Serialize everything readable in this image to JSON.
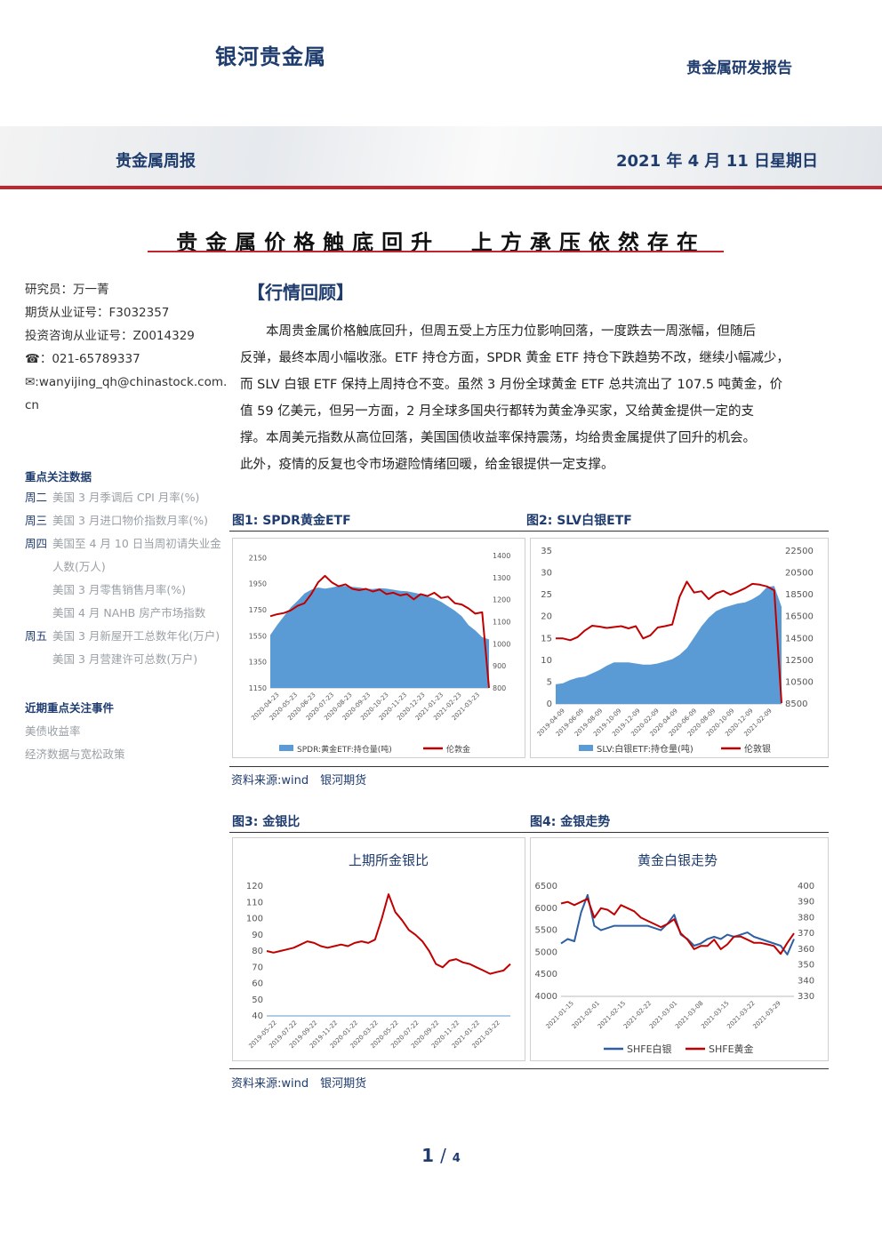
{
  "header": {
    "brand": "银河贵金属",
    "report_type": "贵金属研发报告",
    "weekly": "贵金属周报",
    "date": "2021 年 4 月 11 日星期日"
  },
  "title": "贵金属价格触底回升  上方承压依然存在",
  "sidebar": {
    "analyst": "研究员：万一菁",
    "futures_license": "期货从业证号：F3032357",
    "advisory_license": "投资咨询从业证号：Z0014329",
    "phone": "☎：021-65789337",
    "email": "✉:wanyijing_qh@chinastock.com.",
    "email_cont": "cn",
    "focus_title": "重点关注数据",
    "focus_items": [
      {
        "day": "周二",
        "text": "美国 3 月季调后 CPI 月率(%)"
      },
      {
        "day": "周三",
        "text": "美国 3 月进口物价指数月率(%)"
      },
      {
        "day": "周四",
        "text": "美国至 4 月 10 日当周初请失业金"
      },
      {
        "day": "",
        "text": "人数(万人)"
      },
      {
        "day": "",
        "text": "美国 3 月零售销售月率(%)"
      },
      {
        "day": "",
        "text": "美国 4 月 NAHB 房产市场指数"
      },
      {
        "day": "周五",
        "text": "美国 3 月新屋开工总数年化(万户)"
      },
      {
        "day": "",
        "text": "美国 3 月营建许可总数(万户)"
      }
    ],
    "events_title": "近期重点关注事件",
    "events": [
      "美债收益率",
      "经济数据与宽松政策"
    ]
  },
  "section_title": "【行情回顾】",
  "paragraph_lines": [
    "　　本周贵金属价格触底回升，但周五受上方压力位影响回落，一度跌去一周涨幅，但随后",
    "反弹，最终本周小幅收涨。ETF 持仓方面，SPDR 黄金 ETF 持仓下跌趋势不改，继续小幅减少，",
    "而 SLV 白银 ETF 保持上周持仓不变。虽然 3 月份全球黄金 ETF 总共流出了 107.5 吨黄金，价",
    "值 59 亿美元，但另一方面，2 月全球多国央行都转为黄金净买家，又给黄金提供一定的支",
    "撑。本周美元指数从高位回落，美国国债收益率保持震荡，均给贵金属提供了回升的机会。",
    "此外，疫情的反复也令市场避险情绪回暖，给金银提供一定支撑。"
  ],
  "figures": {
    "fig1_label": "图1: SPDR黄金ETF",
    "fig2_label": "图2:  SLV白银ETF",
    "fig3_label": "图3:  金银比",
    "fig4_label": "图4:  金银走势",
    "source1": "资料来源:wind　银河期货",
    "source2": "资料来源:wind　银河期货"
  },
  "page": {
    "current": "1",
    "sep": "/",
    "total": "4"
  },
  "colors": {
    "navy": "#1f3c6e",
    "red": "#c00000",
    "etf_blue": "#5b9bd5",
    "silver_line": "#2e5fa3"
  },
  "chart_data": [
    {
      "type": "area",
      "id": "spdr",
      "x_ticks": [
        "2020-04-23",
        "2020-05-23",
        "2020-06-23",
        "2020-07-23",
        "2020-08-23",
        "2020-09-23",
        "2020-10-23",
        "2020-11-23",
        "2020-12-23",
        "2021-01-23",
        "2021-02-23",
        "2021-03-23"
      ],
      "y_left_ticks": [
        "2150",
        "1950",
        "1750",
        "1550",
        "1350",
        "1150"
      ],
      "y_right_ticks": [
        "1400",
        "1300",
        "1200",
        "1100",
        "1000",
        "900",
        "800"
      ],
      "ylim_left": [
        1150,
        2200
      ],
      "ylim_right": [
        800,
        1420
      ],
      "series": [
        {
          "name": "SPDR:黄金ETF:持仓量(吨)",
          "axis": "right",
          "values": [
            1040,
            1085,
            1125,
            1165,
            1195,
            1228,
            1245,
            1255,
            1250,
            1255,
            1262,
            1262,
            1258,
            1255,
            1250,
            1248,
            1252,
            1250,
            1245,
            1240,
            1238,
            1232,
            1225,
            1215,
            1205,
            1190,
            1170,
            1150,
            1125,
            1085,
            1060,
            1030,
            1020
          ]
        },
        {
          "name": "伦敦金",
          "axis": "left",
          "values": [
            1700,
            1715,
            1725,
            1745,
            1780,
            1800,
            1870,
            1960,
            2010,
            1960,
            1930,
            1945,
            1910,
            1900,
            1910,
            1890,
            1905,
            1870,
            1880,
            1860,
            1870,
            1830,
            1870,
            1855,
            1880,
            1840,
            1850,
            1800,
            1790,
            1760,
            1720,
            1730,
            1150
          ]
        }
      ],
      "legend": "bottom"
    },
    {
      "type": "area",
      "id": "slv",
      "x_ticks": [
        "2019-04-09",
        "2019-06-09",
        "2019-08-09",
        "2019-10-09",
        "2019-12-09",
        "2020-02-09",
        "2020-04-09",
        "2020-06-09",
        "2020-08-09",
        "2020-10-09",
        "2020-12-09",
        "2021-02-09"
      ],
      "y_left_ticks": [
        "35",
        "30",
        "25",
        "20",
        "15",
        "10",
        "5",
        "0"
      ],
      "y_right_ticks": [
        "22500",
        "20500",
        "18500",
        "16500",
        "14500",
        "12500",
        "10500",
        "8500"
      ],
      "ylim_left": [
        0,
        35
      ],
      "ylim_right": [
        8500,
        22500
      ],
      "series": [
        {
          "name": "SLV:白银ETF:持仓量(吨)",
          "axis": "right",
          "values": [
            10300,
            10400,
            10700,
            10900,
            11000,
            11300,
            11600,
            12000,
            12300,
            12300,
            12300,
            12200,
            12100,
            12100,
            12200,
            12400,
            12600,
            13000,
            13600,
            14600,
            15600,
            16400,
            17000,
            17300,
            17500,
            17700,
            17800,
            18100,
            18500,
            19200,
            19300,
            17400
          ]
        },
        {
          "name": "伦敦银",
          "axis": "left",
          "values": [
            15.0,
            15.0,
            14.6,
            15.3,
            16.8,
            17.9,
            17.7,
            17.4,
            17.6,
            17.8,
            17.3,
            17.8,
            15.0,
            15.7,
            17.5,
            17.8,
            18.2,
            24.5,
            28.0,
            25.5,
            25.8,
            24.0,
            25.3,
            25.9,
            25.0,
            25.7,
            26.5,
            27.5,
            27.3,
            26.9,
            26.0,
            0.2
          ]
        }
      ],
      "legend": "bottom"
    },
    {
      "type": "line",
      "id": "gold_silver_ratio",
      "title": "上期所金银比",
      "x_ticks": [
        "2019-05-22",
        "2019-07-22",
        "2019-09-22",
        "2019-11-22",
        "2020-01-22",
        "2020-03-22",
        "2020-05-22",
        "2020-07-22",
        "2020-09-22",
        "2020-11-22",
        "2021-01-22",
        "2021-03-22"
      ],
      "y_ticks": [
        "120",
        "110",
        "100",
        "90",
        "80",
        "70",
        "60",
        "50",
        "40"
      ],
      "ylim": [
        40,
        120
      ],
      "series": [
        {
          "name": "金银比",
          "values": [
            80,
            79,
            80,
            81,
            82,
            84,
            86,
            85,
            83,
            82,
            83,
            84,
            83,
            85,
            86,
            85,
            87,
            100,
            115,
            104,
            99,
            93,
            90,
            86,
            80,
            72,
            70,
            74,
            75,
            73,
            72,
            70,
            68,
            66,
            67,
            68,
            72
          ]
        }
      ]
    },
    {
      "type": "line",
      "id": "gold_silver_trend",
      "title": "黄金白银走势",
      "x_ticks": [
        "2021-01-15",
        "2021-02-01",
        "2021-02-15",
        "2021-02-22",
        "2021-03-01",
        "2021-03-08",
        "2021-03-15",
        "2021-03-22",
        "2021-03-29"
      ],
      "y_left_ticks": [
        "6500",
        "6000",
        "5500",
        "5000",
        "4500",
        "4000"
      ],
      "y_right_ticks": [
        "400",
        "390",
        "380",
        "370",
        "360",
        "350",
        "340",
        "330"
      ],
      "ylim_left": [
        4000,
        6500
      ],
      "ylim_right": [
        330,
        400
      ],
      "series": [
        {
          "name": "SHFE白银",
          "axis": "left",
          "values": [
            5200,
            5300,
            5250,
            5900,
            6300,
            5600,
            5500,
            5550,
            5600,
            5600,
            5600,
            5600,
            5600,
            5600,
            5550,
            5500,
            5650,
            5850,
            5400,
            5300,
            5150,
            5200,
            5300,
            5350,
            5300,
            5400,
            5350,
            5400,
            5450,
            5350,
            5300,
            5250,
            5200,
            5150,
            4950,
            5300
          ]
        },
        {
          "name": "SHFE黄金",
          "axis": "right",
          "values": [
            389,
            390,
            388,
            390,
            392,
            380,
            386,
            385,
            382,
            388,
            386,
            384,
            380,
            378,
            376,
            374,
            376,
            379,
            370,
            366,
            360,
            362,
            362,
            366,
            360,
            363,
            368,
            368,
            366,
            364,
            364,
            363,
            362,
            357,
            364,
            370
          ]
        }
      ],
      "legend": "bottom"
    }
  ]
}
